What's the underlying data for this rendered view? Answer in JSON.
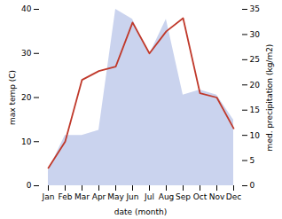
{
  "chart_data": {
    "type": "line",
    "categories": [
      "Jan",
      "Feb",
      "Mar",
      "Apr",
      "May",
      "Jun",
      "Jul",
      "Aug",
      "Sep",
      "Oct",
      "Nov",
      "Dec"
    ],
    "xlabel": "date (month)",
    "ylabel": "max temp (C)",
    "y2label": "med. precipitation (kg/m2)",
    "ylim": [
      0,
      40
    ],
    "yticks": [
      0,
      10,
      20,
      30,
      40
    ],
    "y2lim": [
      0,
      35
    ],
    "y2ticks": [
      0,
      5,
      10,
      15,
      20,
      25,
      30,
      35
    ],
    "grid": false,
    "series": [
      {
        "type": "line",
        "color": "#c0392b",
        "values": [
          4,
          10,
          24,
          26,
          27,
          37,
          30,
          35,
          38,
          21,
          20,
          13
        ]
      },
      {
        "type": "area",
        "axis": "y2",
        "color": "#b8c4e8",
        "values": [
          3,
          10,
          10,
          11,
          35,
          33,
          26,
          33,
          18,
          19,
          18,
          13
        ]
      }
    ]
  }
}
